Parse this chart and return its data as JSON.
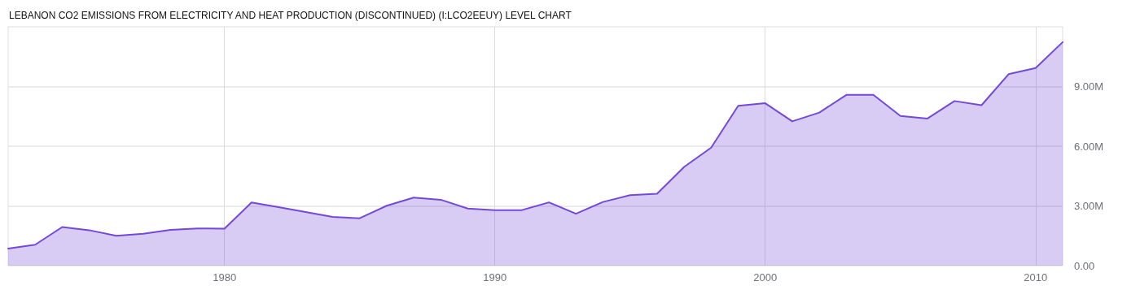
{
  "chart_data": {
    "type": "area",
    "title": "LEBANON CO2 EMISSIONS FROM ELECTRICITY AND HEAT PRODUCTION (DISCONTINUED) (I:LCO2EEUY) LEVEL CHART",
    "x": [
      1972,
      1973,
      1974,
      1975,
      1976,
      1977,
      1978,
      1979,
      1980,
      1981,
      1982,
      1983,
      1984,
      1985,
      1986,
      1987,
      1988,
      1989,
      1990,
      1991,
      1992,
      1993,
      1994,
      1995,
      1996,
      1997,
      1998,
      1999,
      2000,
      2001,
      2002,
      2003,
      2004,
      2005,
      2006,
      2007,
      2008,
      2009,
      2010,
      2011
    ],
    "series": [
      {
        "color": "#7448d8",
        "values": [
          860000,
          1050000,
          1940000,
          1780000,
          1500000,
          1600000,
          1800000,
          1870000,
          1860000,
          3170000,
          2940000,
          2690000,
          2450000,
          2380000,
          3010000,
          3420000,
          3310000,
          2870000,
          2790000,
          2790000,
          3180000,
          2610000,
          3200000,
          3540000,
          3610000,
          4960000,
          5930000,
          8030000,
          8160000,
          7250000,
          7690000,
          8580000,
          8580000,
          7520000,
          7390000,
          8270000,
          8060000,
          9620000,
          9930000,
          11230000
        ]
      }
    ],
    "xlim": [
      1972,
      2011
    ],
    "xticks": [
      1980,
      1990,
      2000,
      2010
    ],
    "ylim": [
      0,
      12000000
    ],
    "yticks": [
      {
        "value": 0,
        "label": "0.00"
      },
      {
        "value": 3000000,
        "label": "3.00M"
      },
      {
        "value": 6000000,
        "label": "6.00M"
      },
      {
        "value": 9000000,
        "label": "9.00M"
      }
    ],
    "grid": true,
    "marker": "none",
    "line_style": "solid"
  }
}
